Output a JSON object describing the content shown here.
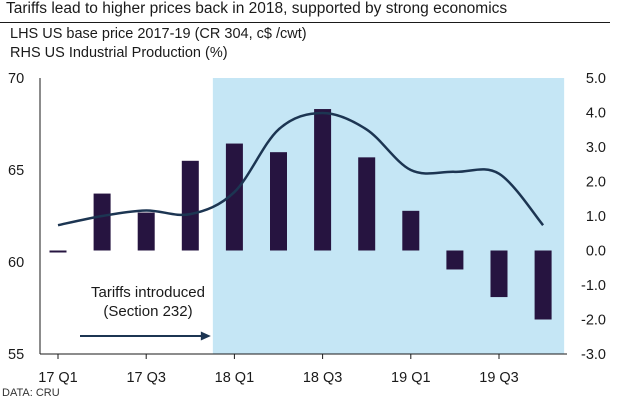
{
  "title": "Tariffs lead to higher prices back in 2018, supported by strong economics",
  "source": "DATA: CRU",
  "chart_data": {
    "type": "bar+line",
    "legend": {
      "lhs": "LHS US base price 2017-19 (CR 304, c$ /cwt)",
      "rhs": "RHS US Industrial Production  (%)"
    },
    "left_axis": {
      "min": 55,
      "max": 70,
      "ticks": [
        "55",
        "60",
        "65",
        "70"
      ]
    },
    "right_axis": {
      "min": -3.0,
      "max": 5.0,
      "ticks": [
        "-3.0",
        "-2.0",
        "-1.0",
        "0.0",
        "1.0",
        "2.0",
        "3.0",
        "4.0",
        "5.0"
      ]
    },
    "x_tick_labels": [
      "17 Q1",
      "17 Q3",
      "18 Q1",
      "18 Q3",
      "19 Q1",
      "19 Q3"
    ],
    "periods": [
      "2017-01",
      "2017-04",
      "2017-07",
      "2017-10",
      "2018-01",
      "2018-04",
      "2018-07",
      "2018-10",
      "2019-01",
      "2019-04",
      "2019-07",
      "2019-10"
    ],
    "industrial_production_pct": [
      -0.05,
      1.65,
      1.1,
      2.6,
      3.1,
      2.85,
      4.1,
      2.7,
      1.15,
      -0.55,
      -1.35,
      -2.0
    ],
    "price_line_c_per_cwt": [
      62.0,
      62.5,
      62.8,
      62.6,
      63.8,
      67.2,
      68.1,
      67.2,
      65.0,
      64.9,
      64.8,
      62.0
    ],
    "shaded_region": {
      "start_period": "2018-01",
      "end_period": "2019-10",
      "label": "Tariffs introduced (Section 232)"
    },
    "annotation_lines": [
      "Tariffs introduced",
      "(Section 232)"
    ],
    "colors": {
      "bars": "#261440",
      "line": "#1c3552",
      "shade": "#c5e6f5",
      "arrow": "#1c3552"
    }
  }
}
